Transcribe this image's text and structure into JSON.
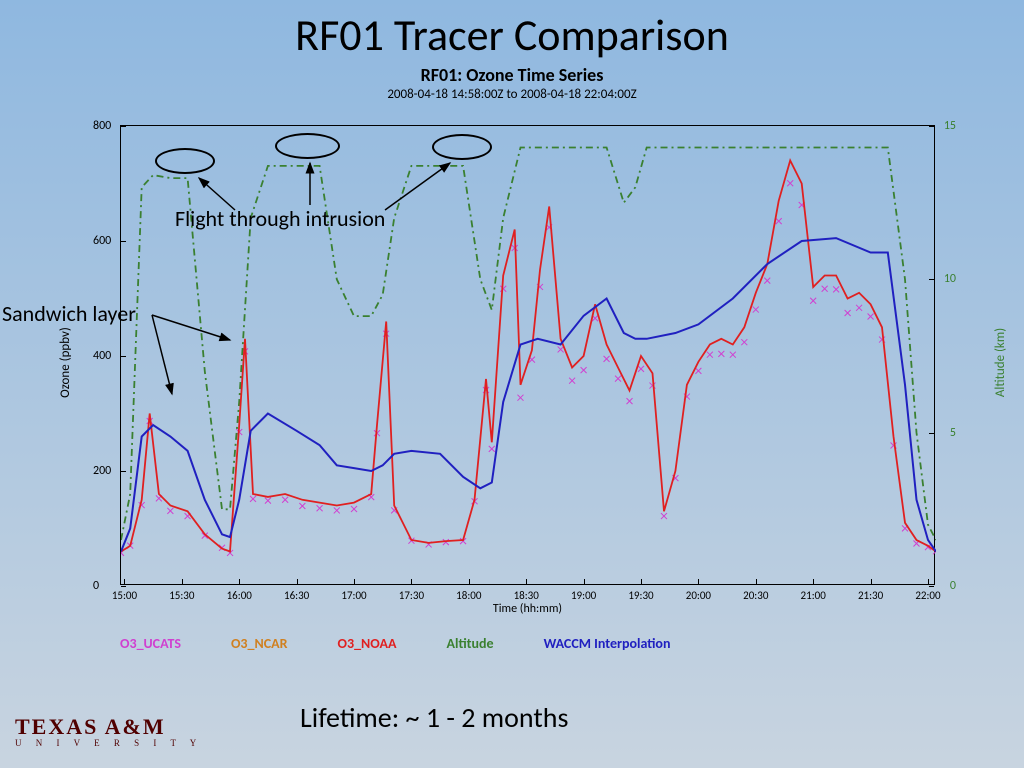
{
  "title": "RF01 Tracer Comparison",
  "chart_title": "RF01: Ozone Time Series",
  "chart_subtitle": "2008-04-18 14:58:00Z  to  2008-04-18 22:04:00Z",
  "y_left_label": "Ozone (ppbv)",
  "y_right_label": "Altitude (km)",
  "x_label": "Time (hh:mm)",
  "y_left_ticks": [
    0,
    200,
    400,
    600,
    800
  ],
  "y_right_ticks": [
    0,
    5,
    10,
    15
  ],
  "x_ticks": [
    "15:00",
    "15:30",
    "16:00",
    "16:30",
    "17:00",
    "17:30",
    "18:00",
    "18:30",
    "19:00",
    "19:30",
    "20:00",
    "20:30",
    "21:00",
    "21:30",
    "22:00"
  ],
  "y_left_max": 800,
  "y_right_max": 15,
  "x_range_min": 14.97,
  "x_range_max": 22.07,
  "legend": [
    {
      "label": "O3_UCATS",
      "color": "#d040d0"
    },
    {
      "label": "O3_NCAR",
      "color": "#d08020"
    },
    {
      "label": "O3_NOAA",
      "color": "#e02020"
    },
    {
      "label": "Altitude",
      "color": "#3a8030"
    },
    {
      "label": "WACCM Interpolation",
      "color": "#2020c0"
    }
  ],
  "annotations": {
    "flight": "Flight through intrusion",
    "sandwich": "Sandwich layer"
  },
  "lifetime": "Lifetime: ~ 1 - 2 months",
  "logo": {
    "main": "TEXAS A&M",
    "sub": "U N I V E R S I T Y"
  },
  "colors": {
    "altitude": "#3a8030",
    "noaa": "#e02020",
    "waccm": "#2020c0",
    "ucats": "#d040d0"
  },
  "series": {
    "altitude": [
      [
        14.97,
        1.5
      ],
      [
        15.05,
        3.0
      ],
      [
        15.15,
        13.0
      ],
      [
        15.25,
        13.4
      ],
      [
        15.4,
        13.3
      ],
      [
        15.55,
        13.3
      ],
      [
        15.7,
        7.0
      ],
      [
        15.85,
        2.5
      ],
      [
        15.92,
        2.5
      ],
      [
        16.0,
        6.0
      ],
      [
        16.1,
        12.0
      ],
      [
        16.25,
        13.7
      ],
      [
        16.5,
        13.7
      ],
      [
        16.7,
        13.7
      ],
      [
        16.85,
        10.0
      ],
      [
        17.0,
        8.8
      ],
      [
        17.15,
        8.8
      ],
      [
        17.25,
        9.5
      ],
      [
        17.35,
        12.0
      ],
      [
        17.5,
        13.7
      ],
      [
        17.75,
        13.7
      ],
      [
        17.95,
        13.7
      ],
      [
        18.1,
        10.0
      ],
      [
        18.2,
        9.0
      ],
      [
        18.3,
        12.0
      ],
      [
        18.45,
        14.3
      ],
      [
        18.6,
        14.3
      ],
      [
        18.8,
        14.3
      ],
      [
        19.0,
        14.3
      ],
      [
        19.2,
        14.3
      ],
      [
        19.35,
        12.5
      ],
      [
        19.45,
        13.0
      ],
      [
        19.55,
        14.3
      ],
      [
        19.8,
        14.3
      ],
      [
        20.0,
        14.3
      ],
      [
        20.3,
        14.3
      ],
      [
        20.6,
        14.3
      ],
      [
        20.9,
        14.3
      ],
      [
        21.2,
        14.3
      ],
      [
        21.5,
        14.3
      ],
      [
        21.65,
        14.3
      ],
      [
        21.8,
        10.0
      ],
      [
        21.9,
        5.0
      ],
      [
        22.0,
        2.0
      ],
      [
        22.07,
        1.5
      ]
    ],
    "waccm": [
      [
        14.97,
        60
      ],
      [
        15.05,
        100
      ],
      [
        15.15,
        260
      ],
      [
        15.25,
        280
      ],
      [
        15.4,
        260
      ],
      [
        15.55,
        235
      ],
      [
        15.7,
        150
      ],
      [
        15.85,
        90
      ],
      [
        15.92,
        85
      ],
      [
        16.0,
        150
      ],
      [
        16.1,
        270
      ],
      [
        16.25,
        300
      ],
      [
        16.5,
        270
      ],
      [
        16.7,
        245
      ],
      [
        16.85,
        210
      ],
      [
        17.0,
        205
      ],
      [
        17.15,
        200
      ],
      [
        17.25,
        210
      ],
      [
        17.35,
        230
      ],
      [
        17.5,
        235
      ],
      [
        17.75,
        230
      ],
      [
        17.95,
        190
      ],
      [
        18.1,
        170
      ],
      [
        18.2,
        180
      ],
      [
        18.3,
        320
      ],
      [
        18.45,
        420
      ],
      [
        18.6,
        430
      ],
      [
        18.8,
        420
      ],
      [
        19.0,
        470
      ],
      [
        19.2,
        500
      ],
      [
        19.35,
        440
      ],
      [
        19.45,
        430
      ],
      [
        19.55,
        430
      ],
      [
        19.8,
        440
      ],
      [
        20.0,
        455
      ],
      [
        20.3,
        500
      ],
      [
        20.6,
        560
      ],
      [
        20.9,
        600
      ],
      [
        21.2,
        605
      ],
      [
        21.5,
        580
      ],
      [
        21.65,
        580
      ],
      [
        21.8,
        350
      ],
      [
        21.9,
        150
      ],
      [
        22.0,
        80
      ],
      [
        22.07,
        60
      ]
    ],
    "noaa": [
      [
        14.97,
        60
      ],
      [
        15.05,
        70
      ],
      [
        15.15,
        150
      ],
      [
        15.22,
        300
      ],
      [
        15.3,
        160
      ],
      [
        15.4,
        140
      ],
      [
        15.55,
        130
      ],
      [
        15.7,
        90
      ],
      [
        15.85,
        65
      ],
      [
        15.92,
        60
      ],
      [
        16.0,
        280
      ],
      [
        16.05,
        430
      ],
      [
        16.12,
        160
      ],
      [
        16.25,
        155
      ],
      [
        16.4,
        160
      ],
      [
        16.55,
        150
      ],
      [
        16.7,
        145
      ],
      [
        16.85,
        140
      ],
      [
        17.0,
        145
      ],
      [
        17.15,
        160
      ],
      [
        17.2,
        280
      ],
      [
        17.28,
        460
      ],
      [
        17.35,
        140
      ],
      [
        17.5,
        80
      ],
      [
        17.65,
        75
      ],
      [
        17.8,
        78
      ],
      [
        17.95,
        80
      ],
      [
        18.05,
        150
      ],
      [
        18.15,
        360
      ],
      [
        18.2,
        250
      ],
      [
        18.3,
        540
      ],
      [
        18.4,
        620
      ],
      [
        18.45,
        350
      ],
      [
        18.55,
        410
      ],
      [
        18.62,
        550
      ],
      [
        18.7,
        660
      ],
      [
        18.8,
        430
      ],
      [
        18.9,
        380
      ],
      [
        19.0,
        400
      ],
      [
        19.1,
        490
      ],
      [
        19.2,
        420
      ],
      [
        19.3,
        380
      ],
      [
        19.4,
        340
      ],
      [
        19.5,
        400
      ],
      [
        19.6,
        370
      ],
      [
        19.7,
        130
      ],
      [
        19.8,
        200
      ],
      [
        19.9,
        350
      ],
      [
        20.0,
        390
      ],
      [
        20.1,
        420
      ],
      [
        20.2,
        430
      ],
      [
        20.3,
        420
      ],
      [
        20.4,
        450
      ],
      [
        20.5,
        510
      ],
      [
        20.6,
        560
      ],
      [
        20.7,
        670
      ],
      [
        20.8,
        740
      ],
      [
        20.9,
        700
      ],
      [
        21.0,
        520
      ],
      [
        21.1,
        540
      ],
      [
        21.2,
        540
      ],
      [
        21.3,
        500
      ],
      [
        21.4,
        510
      ],
      [
        21.5,
        490
      ],
      [
        21.6,
        450
      ],
      [
        21.7,
        260
      ],
      [
        21.8,
        110
      ],
      [
        21.9,
        80
      ],
      [
        22.0,
        70
      ],
      [
        22.07,
        60
      ]
    ]
  }
}
